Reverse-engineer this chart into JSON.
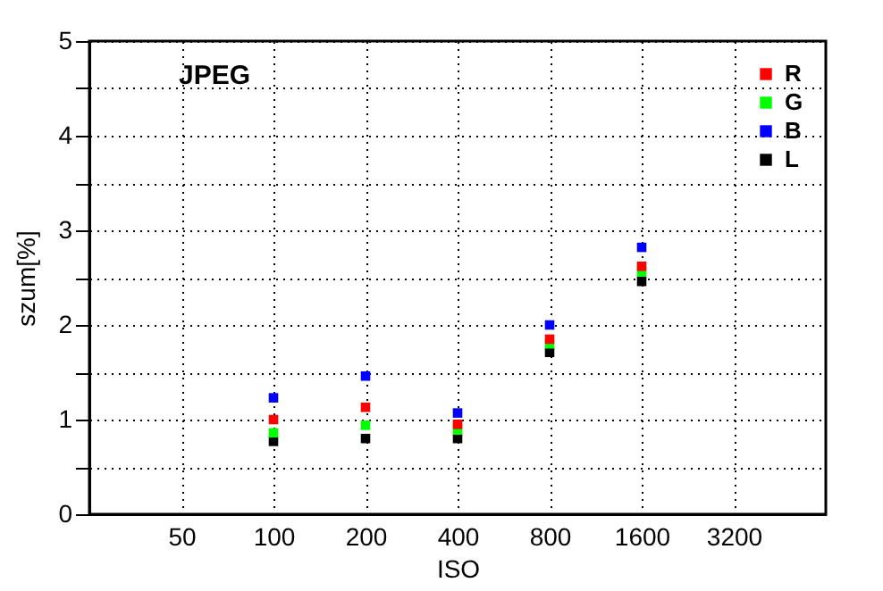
{
  "chart_data": {
    "type": "scatter",
    "annotations": [
      "JPEG"
    ],
    "xlabel": "ISO",
    "ylabel": "szum[%]",
    "categories": [
      "50",
      "100",
      "200",
      "400",
      "800",
      "1600",
      "3200"
    ],
    "series": [
      {
        "name": "R",
        "color": "#ff0000",
        "values": [
          null,
          1.0,
          1.13,
          0.95,
          1.85,
          2.62,
          null
        ]
      },
      {
        "name": "G",
        "color": "#00ff00",
        "values": [
          null,
          0.86,
          0.94,
          0.89,
          1.8,
          2.56,
          null
        ]
      },
      {
        "name": "B",
        "color": "#0000ff",
        "values": [
          null,
          1.23,
          1.46,
          1.07,
          2.0,
          2.82,
          null
        ]
      },
      {
        "name": "L",
        "color": "#000000",
        "values": [
          null,
          0.77,
          0.8,
          0.8,
          1.71,
          2.46,
          null
        ]
      }
    ],
    "ylim": [
      0,
      5
    ],
    "yticks": [
      0,
      {
        "value": 0.5,
        "label": null
      },
      1,
      {
        "value": 1.5,
        "label": null
      },
      2,
      {
        "value": 2.5,
        "label": null
      },
      3,
      {
        "value": 3.5,
        "label": null
      },
      4,
      {
        "value": 4.5,
        "label": null
      },
      5
    ],
    "grid": true,
    "legend": "top right",
    "marker": "square"
  }
}
